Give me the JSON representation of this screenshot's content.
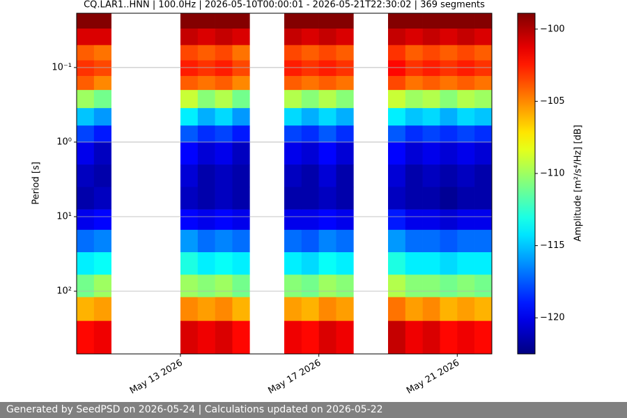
{
  "chart_data": {
    "type": "spectrogram",
    "title": "CQ.LAR1..HNN | 100.0Hz | 2026-05-10T00:00:01 - 2026-05-21T22:30:02 | 369 segments",
    "y_label": "Period [s]",
    "colorbar_label": "Amplitude [m²/s⁴/Hz] [dB]",
    "footer": "Generated by SeedPSD on 2026-05-24 | Calculations updated on 2026-05-22",
    "log_y": true,
    "y_inverted": true,
    "grid": true,
    "colormap": "jet",
    "xlim": [
      "2026-05-10T00:00",
      "2026-05-22T00:00"
    ],
    "xticks": [
      {
        "value": "2026-05-13T00:00",
        "label": "May 13 2026"
      },
      {
        "value": "2026-05-17T00:00",
        "label": "May 17 2026"
      },
      {
        "value": "2026-05-21T00:00",
        "label": "May 21 2026"
      }
    ],
    "ylim": [
      0.0187,
      693
    ],
    "yticks": [
      {
        "value": 0.1,
        "label": "10⁻¹"
      },
      {
        "value": 1,
        "label": "10⁰"
      },
      {
        "value": 10,
        "label": "10¹"
      },
      {
        "value": 100,
        "label": "10²"
      }
    ],
    "clim": [
      -122.5,
      -98.9
    ],
    "cticks": [
      {
        "value": -100,
        "label": "−100"
      },
      {
        "value": -105,
        "label": "−105"
      },
      {
        "value": -110,
        "label": "−110"
      },
      {
        "value": -115,
        "label": "−115"
      },
      {
        "value": -120,
        "label": "−120"
      }
    ],
    "y_edges": [
      0.0187,
      0.03,
      0.05,
      0.08,
      0.13,
      0.2,
      0.35,
      0.6,
      1,
      2,
      4,
      8,
      15,
      30,
      60,
      120,
      250,
      693
    ],
    "x": [
      "2026-05-10T00:00",
      "2026-05-10T12:00",
      "2026-05-11T00:00",
      "2026-05-11T12:00",
      "2026-05-12T00:00",
      "2026-05-12T12:00",
      "2026-05-13T00:00",
      "2026-05-13T12:00",
      "2026-05-14T00:00",
      "2026-05-14T12:00",
      "2026-05-15T00:00",
      "2026-05-15T12:00",
      "2026-05-16T00:00",
      "2026-05-16T12:00",
      "2026-05-17T00:00",
      "2026-05-17T12:00",
      "2026-05-18T00:00",
      "2026-05-18T12:00",
      "2026-05-19T00:00",
      "2026-05-19T12:00",
      "2026-05-20T00:00",
      "2026-05-20T12:00",
      "2026-05-21T00:00",
      "2026-05-21T12:00"
    ],
    "values": [
      [
        -99,
        -101,
        -104,
        -103,
        -104,
        -110,
        -115,
        -118,
        -120,
        -121,
        -121.5,
        -120,
        -117,
        -114,
        -111,
        -106,
        -102
      ],
      [
        -99,
        -101,
        -104.5,
        -103.5,
        -105,
        -111,
        -116,
        -119,
        -121,
        -121.5,
        -121,
        -119.5,
        -116.5,
        -113.5,
        -110,
        -105.5,
        -101.5
      ],
      null,
      null,
      null,
      null,
      [
        -99,
        -100.5,
        -103.5,
        -102.5,
        -104,
        -109,
        -114,
        -117.5,
        -119.5,
        -120.5,
        -121,
        -119.5,
        -116,
        -113,
        -110,
        -105,
        -101
      ],
      [
        -99,
        -101,
        -104,
        -103,
        -104.5,
        -110.5,
        -115.5,
        -118.5,
        -120.5,
        -121.5,
        -121.5,
        -120,
        -117,
        -114,
        -110.5,
        -105.5,
        -101.5
      ],
      [
        -99,
        -100.5,
        -103.5,
        -102.5,
        -104,
        -109.5,
        -114.5,
        -118,
        -120,
        -121,
        -121,
        -119.5,
        -116.5,
        -113.5,
        -110,
        -105,
        -101
      ],
      [
        -99,
        -101,
        -104.5,
        -103.5,
        -105,
        -111,
        -116,
        -119,
        -121,
        -121.5,
        -121.5,
        -120,
        -117,
        -114,
        -111,
        -106,
        -102
      ],
      null,
      null,
      [
        -99,
        -100.5,
        -103.5,
        -102.5,
        -104,
        -109.5,
        -114.5,
        -118,
        -120,
        -121,
        -121.5,
        -120,
        -117,
        -114,
        -110.5,
        -105.5,
        -101.5
      ],
      [
        -99,
        -101,
        -104,
        -103,
        -104.5,
        -110.5,
        -115.5,
        -118.5,
        -120.5,
        -121.5,
        -121.5,
        -120,
        -117.5,
        -114.5,
        -111,
        -106,
        -102
      ],
      [
        -99,
        -100.5,
        -103.5,
        -102.5,
        -104,
        -109.5,
        -114.5,
        -117.5,
        -119.5,
        -120.5,
        -121,
        -119.5,
        -116.5,
        -113.5,
        -110,
        -105,
        -101
      ],
      [
        -99,
        -101,
        -104,
        -103,
        -104.5,
        -110.5,
        -115.5,
        -118.5,
        -120.5,
        -121.5,
        -121.5,
        -120,
        -117,
        -114,
        -110.5,
        -105.5,
        -101.5
      ],
      null,
      null,
      [
        -99,
        -100.5,
        -103,
        -102,
        -103.5,
        -109,
        -114,
        -117.5,
        -119.5,
        -120.5,
        -121,
        -119,
        -116,
        -113,
        -109.5,
        -104.5,
        -100.5
      ],
      [
        -99,
        -101,
        -104,
        -103,
        -104.5,
        -110,
        -115,
        -118.5,
        -120.5,
        -121.5,
        -121.5,
        -120,
        -117,
        -114,
        -110.5,
        -105.5,
        -101.5
      ],
      [
        -99,
        -100.5,
        -103.5,
        -102.5,
        -104,
        -109.5,
        -114.5,
        -118,
        -120,
        -121,
        -121.5,
        -120,
        -117,
        -114,
        -110.5,
        -105,
        -101
      ],
      [
        -99,
        -101,
        -104,
        -103,
        -104.5,
        -110.5,
        -115.5,
        -118.5,
        -120.5,
        -121.5,
        -122,
        -120.5,
        -117.5,
        -114.5,
        -111,
        -106,
        -102
      ],
      [
        -99,
        -100.5,
        -103.5,
        -102.5,
        -104,
        -109.5,
        -114.5,
        -118,
        -120,
        -121,
        -121.5,
        -120,
        -117,
        -114,
        -110.5,
        -105.5,
        -101.5
      ],
      [
        -99,
        -101,
        -104,
        -103,
        -104.5,
        -110,
        -115,
        -118.5,
        -120.5,
        -121.5,
        -121.5,
        -120,
        -117,
        -114,
        -111,
        -106,
        -102
      ]
    ]
  }
}
